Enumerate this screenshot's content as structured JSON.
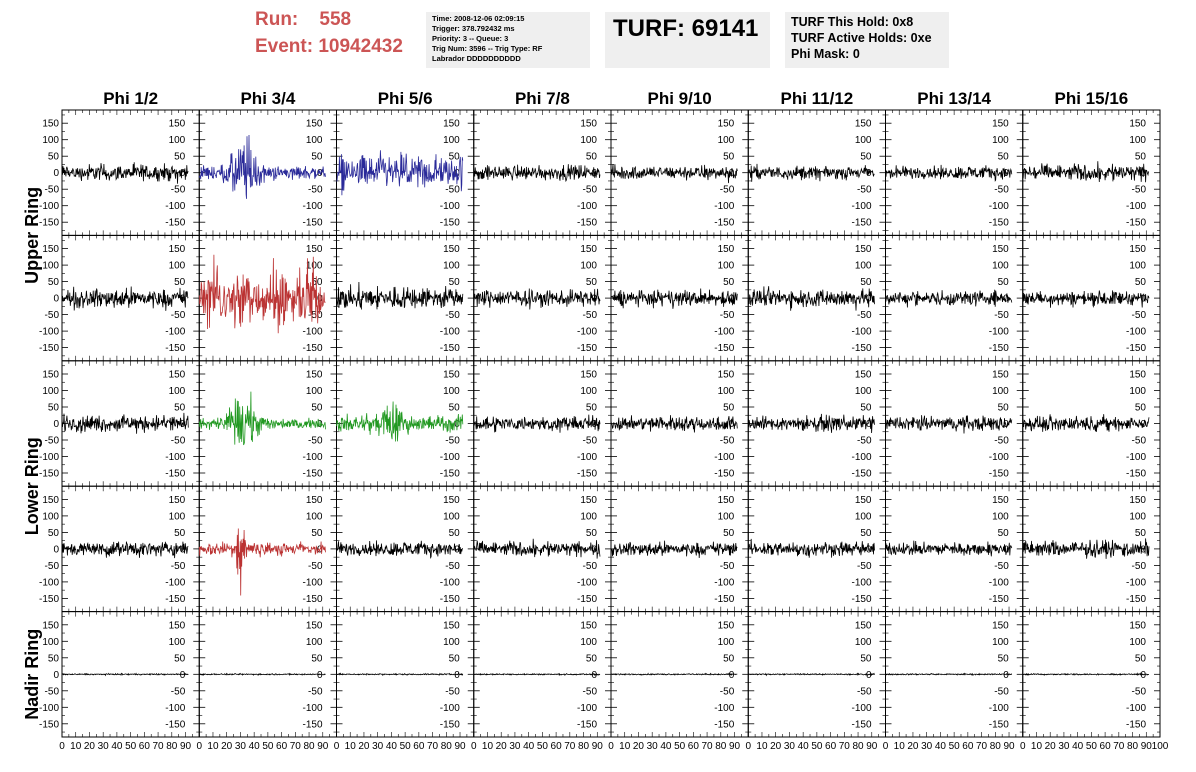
{
  "header": {
    "run_label": "Run:",
    "run_value": "558",
    "event_label": "Event:",
    "event_value": "10942432",
    "info_lines": [
      "Time: 2008-12-06 02:09:15",
      "Trigger: 378.792432 ms",
      "Priority: 3 -- Queue: 3",
      "Trig Num: 3596 -- Trig Type: RF",
      "Labrador DDDDDDDDDD"
    ],
    "turf": "TURF: 69141",
    "hold_lines": [
      "TURF This Hold: 0x8",
      "TURF Active Holds: 0xe",
      "Phi Mask: 0"
    ]
  },
  "chart_data": {
    "type": "line",
    "column_labels": [
      "Phi 1/2",
      "Phi 3/4",
      "Phi 5/6",
      "Phi 7/8",
      "Phi 9/10",
      "Phi 11/12",
      "Phi 13/14",
      "Phi 15/16"
    ],
    "row_labels": [
      "Upper Ring",
      "Lower Ring",
      "Nadir Ring"
    ],
    "row_label_spans": [
      [
        0,
        1
      ],
      [
        2,
        3
      ],
      [
        4,
        4
      ]
    ],
    "xlim": [
      0,
      100
    ],
    "ylim": [
      -190,
      190
    ],
    "y_ticks": [
      -150,
      -100,
      -50,
      0,
      50,
      100,
      150
    ],
    "x_tick_labels": [
      "0",
      "10",
      "20",
      "30",
      "40",
      "50",
      "60",
      "70",
      "80",
      "90",
      "100"
    ],
    "colors": {
      "default": "#000000",
      "blue": "#2a2a99",
      "red": "#bb3333",
      "green": "#229922"
    },
    "panels_note_values": "waveform amplitude approx. per panel [row][col]",
    "amplitude": [
      [
        25,
        60,
        60,
        22,
        22,
        20,
        20,
        25
      ],
      [
        28,
        80,
        35,
        25,
        25,
        28,
        22,
        22
      ],
      [
        25,
        45,
        45,
        22,
        22,
        22,
        22,
        22
      ],
      [
        22,
        40,
        22,
        22,
        20,
        22,
        20,
        25
      ],
      [
        2,
        2,
        2,
        2,
        2,
        2,
        2,
        2
      ]
    ],
    "highlight": [
      [
        null,
        "blue",
        "blue",
        null,
        null,
        null,
        null,
        null
      ],
      [
        null,
        "red",
        null,
        null,
        null,
        null,
        null,
        null
      ],
      [
        null,
        "green",
        "green",
        null,
        null,
        null,
        null,
        null
      ],
      [
        null,
        "red",
        null,
        null,
        null,
        null,
        null,
        null
      ],
      [
        null,
        null,
        null,
        null,
        null,
        null,
        null,
        null
      ]
    ]
  }
}
